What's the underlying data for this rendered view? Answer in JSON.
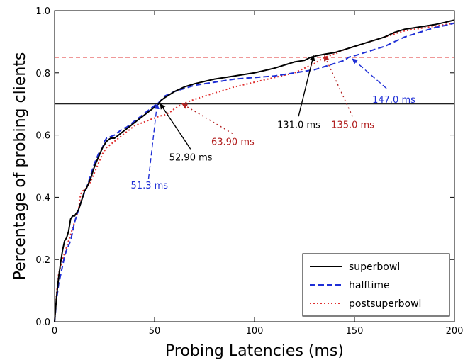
{
  "chart_data": {
    "type": "line",
    "title": "",
    "xlabel": "Probing Latencies (ms)",
    "ylabel": "Percentage of probing clients",
    "xlim": [
      0,
      200
    ],
    "ylim": [
      0,
      1.0
    ],
    "xticks": [
      0,
      50,
      100,
      150,
      200
    ],
    "xtick_labels": [
      "0",
      "50",
      "100",
      "150",
      "200"
    ],
    "yticks": [
      0.0,
      0.2,
      0.4,
      0.6,
      0.8,
      1.0
    ],
    "ytick_labels": [
      "0.0",
      "0.2",
      "0.4",
      "0.6",
      "0.8",
      "1.0"
    ],
    "grid": false,
    "legend_position": "lower-right",
    "reference_lines": [
      {
        "y": 0.7,
        "color": "#000000",
        "style": "solid"
      },
      {
        "y": 0.85,
        "color": "#e03030",
        "style": "dashed"
      }
    ],
    "series": [
      {
        "name": "superbowl",
        "color": "#000000",
        "style": "solid",
        "x": [
          0,
          1,
          2,
          3,
          4,
          5,
          6,
          7,
          8,
          9,
          10,
          11,
          12,
          13,
          14,
          15,
          16,
          18,
          20,
          22,
          24,
          25,
          26,
          28,
          30,
          32,
          34,
          36,
          38,
          40,
          42,
          44,
          46,
          48,
          50,
          52,
          53,
          55,
          60,
          65,
          70,
          80,
          90,
          100,
          110,
          120,
          125,
          128,
          131,
          135,
          140,
          145,
          150,
          155,
          160,
          165,
          170,
          175,
          180,
          185,
          190,
          195,
          200
        ],
        "y": [
          0.0,
          0.08,
          0.14,
          0.19,
          0.23,
          0.26,
          0.27,
          0.29,
          0.33,
          0.34,
          0.34,
          0.35,
          0.36,
          0.38,
          0.4,
          0.42,
          0.43,
          0.46,
          0.5,
          0.53,
          0.56,
          0.57,
          0.58,
          0.59,
          0.59,
          0.6,
          0.61,
          0.62,
          0.63,
          0.64,
          0.65,
          0.66,
          0.67,
          0.68,
          0.69,
          0.7,
          0.71,
          0.72,
          0.74,
          0.755,
          0.765,
          0.78,
          0.79,
          0.8,
          0.815,
          0.835,
          0.84,
          0.85,
          0.855,
          0.86,
          0.865,
          0.875,
          0.885,
          0.895,
          0.905,
          0.915,
          0.93,
          0.94,
          0.945,
          0.95,
          0.955,
          0.962,
          0.97
        ]
      },
      {
        "name": "halftime",
        "color": "#1f2fd6",
        "style": "dashed",
        "x": [
          0,
          1,
          2,
          3,
          4,
          5,
          6,
          8,
          10,
          12,
          14,
          16,
          18,
          20,
          22,
          24,
          25,
          26,
          28,
          30,
          32,
          34,
          36,
          38,
          40,
          42,
          44,
          46,
          48,
          50,
          51.3,
          53,
          55,
          60,
          65,
          70,
          80,
          90,
          100,
          110,
          120,
          130,
          135,
          140,
          145,
          147,
          150,
          155,
          160,
          165,
          170,
          175,
          180,
          185,
          190,
          195,
          200
        ],
        "y": [
          0.0,
          0.07,
          0.12,
          0.15,
          0.18,
          0.21,
          0.23,
          0.26,
          0.32,
          0.36,
          0.4,
          0.43,
          0.47,
          0.51,
          0.54,
          0.56,
          0.58,
          0.59,
          0.595,
          0.6,
          0.61,
          0.62,
          0.625,
          0.635,
          0.645,
          0.655,
          0.665,
          0.675,
          0.685,
          0.695,
          0.7,
          0.71,
          0.725,
          0.74,
          0.75,
          0.76,
          0.77,
          0.78,
          0.785,
          0.79,
          0.8,
          0.81,
          0.82,
          0.83,
          0.84,
          0.85,
          0.855,
          0.865,
          0.875,
          0.885,
          0.9,
          0.915,
          0.925,
          0.935,
          0.945,
          0.952,
          0.96
        ]
      },
      {
        "name": "postsuperbowl",
        "color": "#e03030",
        "style": "dotted",
        "x": [
          0,
          1,
          2,
          3,
          4,
          5,
          6,
          8,
          10,
          12,
          13,
          14,
          16,
          18,
          20,
          22,
          24,
          26,
          28,
          30,
          32,
          34,
          36,
          38,
          40,
          42,
          44,
          46,
          48,
          50,
          52,
          55,
          58,
          60,
          63.9,
          70,
          80,
          90,
          100,
          110,
          120,
          125,
          130,
          135,
          140,
          145,
          150,
          155,
          160,
          165,
          170,
          175,
          180,
          185,
          190,
          195,
          200
        ],
        "y": [
          0.0,
          0.09,
          0.15,
          0.18,
          0.2,
          0.22,
          0.24,
          0.28,
          0.32,
          0.36,
          0.41,
          0.42,
          0.43,
          0.45,
          0.48,
          0.51,
          0.54,
          0.56,
          0.57,
          0.58,
          0.59,
          0.6,
          0.61,
          0.62,
          0.63,
          0.635,
          0.64,
          0.645,
          0.65,
          0.655,
          0.66,
          0.665,
          0.675,
          0.685,
          0.7,
          0.715,
          0.735,
          0.755,
          0.77,
          0.785,
          0.8,
          0.815,
          0.83,
          0.85,
          0.86,
          0.875,
          0.885,
          0.895,
          0.905,
          0.915,
          0.925,
          0.935,
          0.94,
          0.945,
          0.95,
          0.955,
          0.96
        ]
      }
    ],
    "annotations": [
      {
        "text": "52.90 ms",
        "color": "#000000",
        "point": [
          52.9,
          0.7
        ],
        "label_at": [
          68,
          0.555
        ]
      },
      {
        "text": "63.90 ms",
        "color": "#b22020",
        "point": [
          63.9,
          0.7
        ],
        "label_at": [
          89,
          0.605
        ]
      },
      {
        "text": "51.3 ms",
        "color": "#1f2fd6",
        "point": [
          51.3,
          0.7
        ],
        "label_at": [
          47,
          0.46
        ]
      },
      {
        "text": "131.0 ms",
        "color": "#000000",
        "point": [
          129.5,
          0.855
        ],
        "label_at": [
          122,
          0.66
        ]
      },
      {
        "text": "135.0 ms",
        "color": "#b22020",
        "point": [
          135,
          0.855
        ],
        "label_at": [
          149,
          0.66
        ]
      },
      {
        "text": "147.0 ms",
        "color": "#1f2fd6",
        "point": [
          149,
          0.845
        ],
        "label_at": [
          166,
          0.75
        ]
      }
    ]
  }
}
